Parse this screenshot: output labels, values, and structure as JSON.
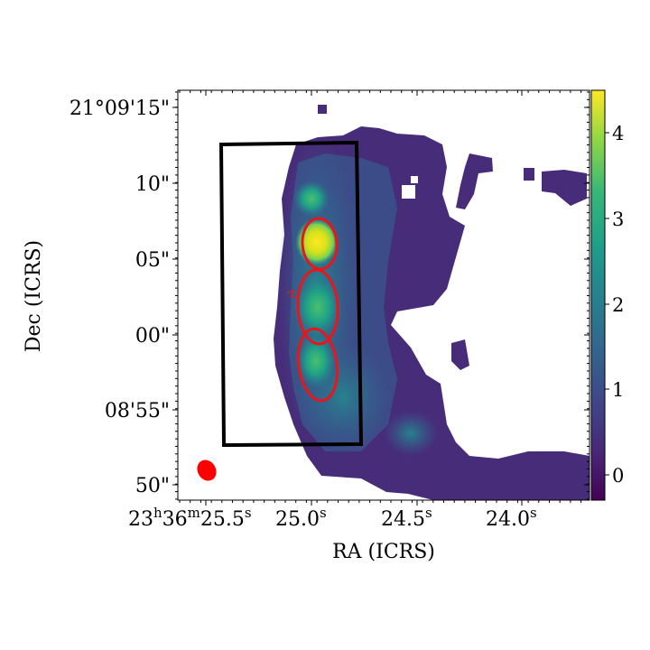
{
  "axes": {
    "xlabel": "RA (ICRS)",
    "ylabel": "Dec (ICRS)",
    "ra_ticks": [
      {
        "main": "23",
        "sup1": "h",
        "m": "36",
        "sup2": "m",
        "s": "25.5",
        "sup3": "s"
      },
      {
        "main": "25.0",
        "sup3": "s"
      },
      {
        "main": "24.5",
        "sup3": "s"
      },
      {
        "main": "24.0",
        "sup3": "s"
      }
    ],
    "dec_ticks": [
      "21°09'15\"",
      "10\"",
      "05\"",
      "00\"",
      "08'55\"",
      "50\""
    ]
  },
  "colorbar": {
    "ticks": [
      "0",
      "1",
      "2",
      "3",
      "4"
    ],
    "range": [
      -0.3,
      4.5
    ],
    "colormap": "viridis"
  },
  "overlays": {
    "rectangle_color": "#000000",
    "ellipse_color": "#e8161b",
    "beam_color": "#ff0000",
    "ellipse_count": 3,
    "beam_label": "beam"
  }
}
